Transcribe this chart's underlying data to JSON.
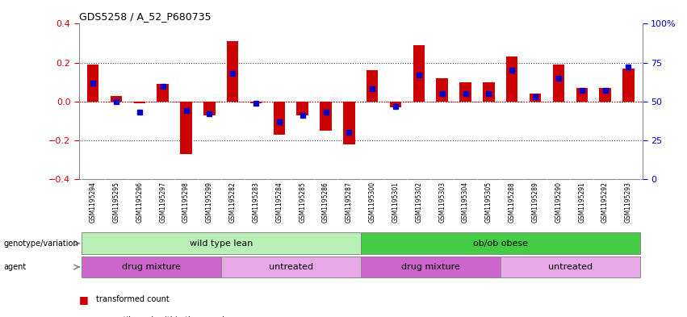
{
  "title": "GDS5258 / A_52_P680735",
  "samples": [
    "GSM1195294",
    "GSM1195295",
    "GSM1195296",
    "GSM1195297",
    "GSM1195298",
    "GSM1195299",
    "GSM1195282",
    "GSM1195283",
    "GSM1195284",
    "GSM1195285",
    "GSM1195286",
    "GSM1195287",
    "GSM1195300",
    "GSM1195301",
    "GSM1195302",
    "GSM1195303",
    "GSM1195304",
    "GSM1195305",
    "GSM1195288",
    "GSM1195289",
    "GSM1195290",
    "GSM1195291",
    "GSM1195292",
    "GSM1195293"
  ],
  "red_values": [
    0.19,
    0.03,
    -0.01,
    0.09,
    -0.27,
    -0.07,
    0.31,
    -0.01,
    -0.17,
    -0.07,
    -0.15,
    -0.22,
    0.16,
    -0.03,
    0.29,
    0.12,
    0.1,
    0.1,
    0.23,
    0.04,
    0.19,
    0.07,
    0.07,
    0.17
  ],
  "blue_values_pct": [
    62,
    50,
    43,
    60,
    44,
    42,
    68,
    49,
    37,
    41,
    43,
    30,
    58,
    47,
    67,
    55,
    55,
    55,
    70,
    53,
    65,
    57,
    57,
    72
  ],
  "genotype_groups": [
    {
      "label": "wild type lean",
      "start": 0,
      "end": 11,
      "color": "#b8f0b8"
    },
    {
      "label": "ob/ob obese",
      "start": 12,
      "end": 23,
      "color": "#44cc44"
    }
  ],
  "agent_groups": [
    {
      "label": "drug mixture",
      "start": 0,
      "end": 5,
      "color": "#cc66cc"
    },
    {
      "label": "untreated",
      "start": 6,
      "end": 11,
      "color": "#e8a8e8"
    },
    {
      "label": "drug mixture",
      "start": 12,
      "end": 17,
      "color": "#cc66cc"
    },
    {
      "label": "untreated",
      "start": 18,
      "end": 23,
      "color": "#e8a8e8"
    }
  ],
  "ylim": [
    -0.4,
    0.4
  ],
  "y2lim": [
    0,
    100
  ],
  "yticks": [
    -0.4,
    -0.2,
    0.0,
    0.2,
    0.4
  ],
  "y2ticks": [
    0,
    25,
    50,
    75,
    100
  ],
  "y2ticklabels": [
    "0",
    "25",
    "50",
    "75",
    "100%"
  ],
  "red_color": "#CC0000",
  "blue_color": "#0000CC",
  "bar_width": 0.5,
  "blue_marker_size": 4,
  "tick_bg_color": "#cccccc",
  "dotline_color": "#444444"
}
